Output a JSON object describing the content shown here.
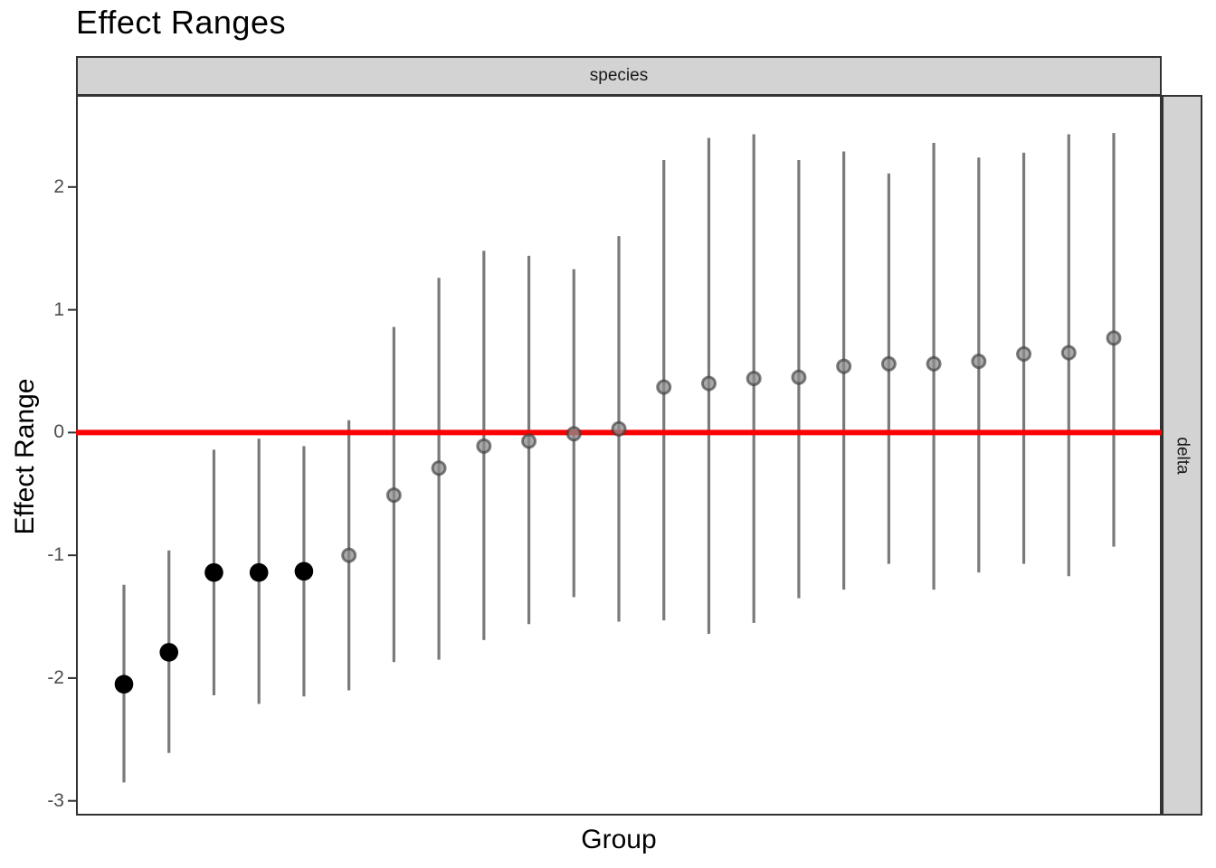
{
  "title": "Effect Ranges",
  "facets": {
    "top_label": "species",
    "right_label": "delta"
  },
  "axes": {
    "x_label": "Group",
    "y_label": "Effect Range",
    "x_tick_labels_shown": false
  },
  "colors": {
    "background": "#ffffff",
    "strip_fill": "#d3d3d3",
    "strip_border": "#333333",
    "panel_border": "#333333",
    "axis_tick": "#333333",
    "axis_text": "#4d4d4d",
    "error_bar": "#7a7a7a",
    "reference_line": "#fb0000",
    "significant_point": "#000000",
    "nonsignificant_point_fill": "#8c8c8c",
    "nonsignificant_point_stroke": "#3c3c3c"
  },
  "chart_data": {
    "type": "scatter",
    "subtype": "pointrange",
    "title": "Effect Ranges",
    "xlabel": "Group",
    "ylabel": "Effect Range",
    "facet_col": "species",
    "facet_row": "delta",
    "reference_line_y": 0,
    "y_ticks": [
      2,
      1,
      0,
      -1,
      -2,
      -3
    ],
    "ylim": [
      -3.12,
      2.75
    ],
    "grid": false,
    "legend": "none",
    "n_groups": 23,
    "points": [
      {
        "group": 1,
        "mean": -2.05,
        "lower": -2.85,
        "upper": -1.24,
        "significant": true
      },
      {
        "group": 2,
        "mean": -1.79,
        "lower": -2.61,
        "upper": -0.96,
        "significant": true
      },
      {
        "group": 3,
        "mean": -1.14,
        "lower": -2.14,
        "upper": -0.14,
        "significant": true
      },
      {
        "group": 4,
        "mean": -1.14,
        "lower": -2.21,
        "upper": -0.05,
        "significant": true
      },
      {
        "group": 5,
        "mean": -1.13,
        "lower": -2.15,
        "upper": -0.11,
        "significant": true
      },
      {
        "group": 6,
        "mean": -1.0,
        "lower": -2.1,
        "upper": 0.1,
        "significant": false
      },
      {
        "group": 7,
        "mean": -0.51,
        "lower": -1.87,
        "upper": 0.86,
        "significant": false
      },
      {
        "group": 8,
        "mean": -0.29,
        "lower": -1.85,
        "upper": 1.26,
        "significant": false
      },
      {
        "group": 9,
        "mean": -0.11,
        "lower": -1.69,
        "upper": 1.48,
        "significant": false
      },
      {
        "group": 10,
        "mean": -0.07,
        "lower": -1.56,
        "upper": 1.44,
        "significant": false
      },
      {
        "group": 11,
        "mean": -0.01,
        "lower": -1.34,
        "upper": 1.33,
        "significant": false
      },
      {
        "group": 12,
        "mean": 0.03,
        "lower": -1.54,
        "upper": 1.6,
        "significant": false
      },
      {
        "group": 13,
        "mean": 0.37,
        "lower": -1.53,
        "upper": 2.22,
        "significant": false
      },
      {
        "group": 14,
        "mean": 0.4,
        "lower": -1.64,
        "upper": 2.4,
        "significant": false
      },
      {
        "group": 15,
        "mean": 0.44,
        "lower": -1.55,
        "upper": 2.43,
        "significant": false
      },
      {
        "group": 16,
        "mean": 0.45,
        "lower": -1.35,
        "upper": 2.22,
        "significant": false
      },
      {
        "group": 17,
        "mean": 0.54,
        "lower": -1.28,
        "upper": 2.29,
        "significant": false
      },
      {
        "group": 18,
        "mean": 0.56,
        "lower": -1.07,
        "upper": 2.11,
        "significant": false
      },
      {
        "group": 19,
        "mean": 0.56,
        "lower": -1.28,
        "upper": 2.36,
        "significant": false
      },
      {
        "group": 20,
        "mean": 0.58,
        "lower": -1.14,
        "upper": 2.24,
        "significant": false
      },
      {
        "group": 21,
        "mean": 0.64,
        "lower": -1.07,
        "upper": 2.28,
        "significant": false
      },
      {
        "group": 22,
        "mean": 0.65,
        "lower": -1.17,
        "upper": 2.43,
        "significant": false
      },
      {
        "group": 23,
        "mean": 0.77,
        "lower": -0.93,
        "upper": 2.44,
        "significant": false
      }
    ]
  }
}
